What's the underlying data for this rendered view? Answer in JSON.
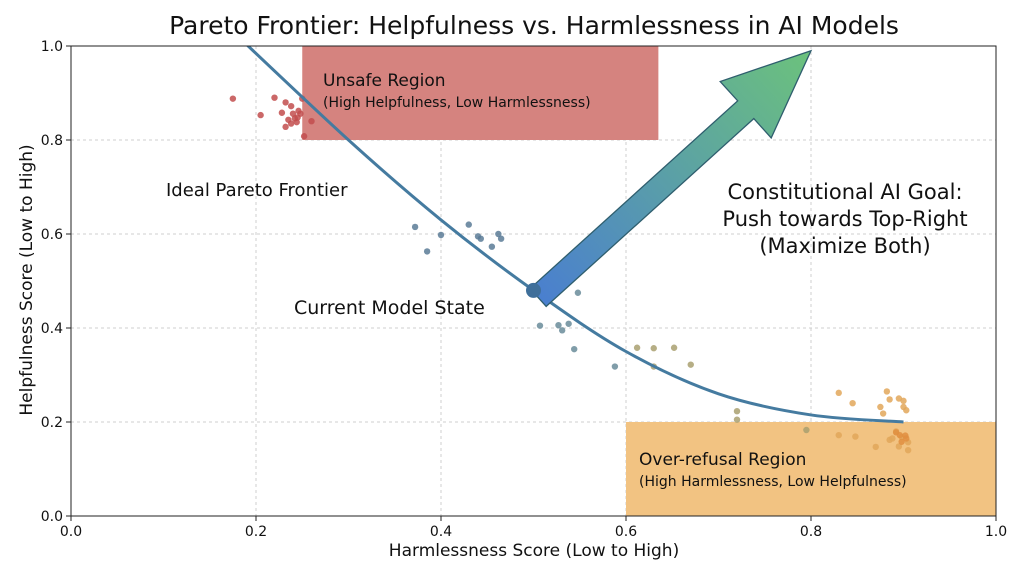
{
  "chart_data": {
    "type": "scatter",
    "title": "Pareto Frontier: Helpfulness vs. Harmlessness in AI Models",
    "xlabel": "Harmlessness Score (Low to High)",
    "ylabel": "Helpfulness Score (Low to High)",
    "xlim": [
      0,
      1
    ],
    "ylim": [
      0,
      1
    ],
    "x_ticks": [
      "0.0",
      "0.2",
      "0.4",
      "0.6",
      "0.8",
      "1.0"
    ],
    "y_ticks": [
      "0.0",
      "0.2",
      "0.4",
      "0.6",
      "0.8",
      "1.0"
    ],
    "grid": true,
    "regions": [
      {
        "name": "unsafe",
        "label": "Unsafe Region",
        "sublabel": "(High Helpfulness, Low Harmlessness)",
        "x": [
          0.25,
          0.635
        ],
        "y": [
          0.8,
          1.0
        ],
        "color": "#d5837f"
      },
      {
        "name": "over-refusal",
        "label": "Over-refusal Region",
        "sublabel": "(High Harmlessness, Low Helpfulness)",
        "x": [
          0.6,
          1.0
        ],
        "y": [
          0.0,
          0.2
        ],
        "color": "#f2c382"
      }
    ],
    "frontier": {
      "label": "Ideal Pareto Frontier",
      "color": "#457ba0",
      "x": [
        0.17,
        0.3,
        0.4,
        0.5,
        0.6,
        0.7,
        0.8,
        0.9
      ],
      "y": [
        1.04,
        0.8,
        0.63,
        0.48,
        0.35,
        0.26,
        0.215,
        0.2
      ]
    },
    "current_state": {
      "label": "Current Model State",
      "x": 0.5,
      "y": 0.48,
      "color": "#3f6f9a"
    },
    "goal": {
      "label_lines": [
        "Constitutional AI Goal:",
        "Push towards Top-Right",
        "(Maximize Both)"
      ],
      "from": [
        0.505,
        0.465
      ],
      "to": [
        0.8,
        0.99
      ],
      "color_start": "#4a7fcf",
      "color_end": "#6cc27c"
    },
    "series": [
      {
        "color": "#c24e4e",
        "points": [
          [
            0.175,
            0.888
          ],
          [
            0.205,
            0.853
          ],
          [
            0.22,
            0.89
          ],
          [
            0.228,
            0.858
          ],
          [
            0.232,
            0.88
          ],
          [
            0.235,
            0.843
          ],
          [
            0.238,
            0.872
          ],
          [
            0.24,
            0.856
          ],
          [
            0.242,
            0.846
          ],
          [
            0.244,
            0.838
          ],
          [
            0.245,
            0.848
          ],
          [
            0.248,
            0.856
          ],
          [
            0.25,
            0.888
          ],
          [
            0.252,
            0.808
          ],
          [
            0.232,
            0.828
          ],
          [
            0.26,
            0.84
          ],
          [
            0.238,
            0.835
          ],
          [
            0.246,
            0.862
          ]
        ]
      },
      {
        "color": "#5b7b96",
        "points": [
          [
            0.372,
            0.615
          ],
          [
            0.385,
            0.563
          ],
          [
            0.4,
            0.598
          ],
          [
            0.43,
            0.62
          ],
          [
            0.44,
            0.595
          ],
          [
            0.443,
            0.59
          ],
          [
            0.455,
            0.573
          ],
          [
            0.462,
            0.6
          ],
          [
            0.465,
            0.59
          ]
        ]
      },
      {
        "color": "#6a8c9a",
        "points": [
          [
            0.507,
            0.405
          ],
          [
            0.527,
            0.406
          ],
          [
            0.531,
            0.395
          ],
          [
            0.538,
            0.409
          ],
          [
            0.544,
            0.355
          ],
          [
            0.548,
            0.475
          ],
          [
            0.588,
            0.318
          ]
        ]
      },
      {
        "color": "#a9a070",
        "points": [
          [
            0.612,
            0.358
          ],
          [
            0.63,
            0.357
          ],
          [
            0.652,
            0.358
          ],
          [
            0.63,
            0.318
          ],
          [
            0.67,
            0.322
          ],
          [
            0.72,
            0.223
          ],
          [
            0.72,
            0.205
          ],
          [
            0.795,
            0.183
          ]
        ]
      },
      {
        "color": "#e2a75a",
        "points": [
          [
            0.83,
            0.262
          ],
          [
            0.83,
            0.172
          ],
          [
            0.845,
            0.24
          ],
          [
            0.848,
            0.169
          ],
          [
            0.87,
            0.147
          ],
          [
            0.875,
            0.232
          ],
          [
            0.878,
            0.218
          ],
          [
            0.882,
            0.265
          ],
          [
            0.885,
            0.248
          ],
          [
            0.885,
            0.162
          ],
          [
            0.892,
            0.18
          ],
          [
            0.895,
            0.25
          ],
          [
            0.898,
            0.168
          ],
          [
            0.9,
            0.232
          ],
          [
            0.9,
            0.245
          ],
          [
            0.903,
            0.225
          ],
          [
            0.905,
            0.157
          ],
          [
            0.905,
            0.14
          ],
          [
            0.895,
            0.148
          ],
          [
            0.888,
            0.165
          ]
        ]
      },
      {
        "color": "#e08e3f",
        "points": [
          [
            0.892,
            0.178
          ],
          [
            0.896,
            0.172
          ],
          [
            0.902,
            0.171
          ],
          [
            0.898,
            0.158
          ],
          [
            0.903,
            0.165
          ]
        ]
      }
    ]
  }
}
